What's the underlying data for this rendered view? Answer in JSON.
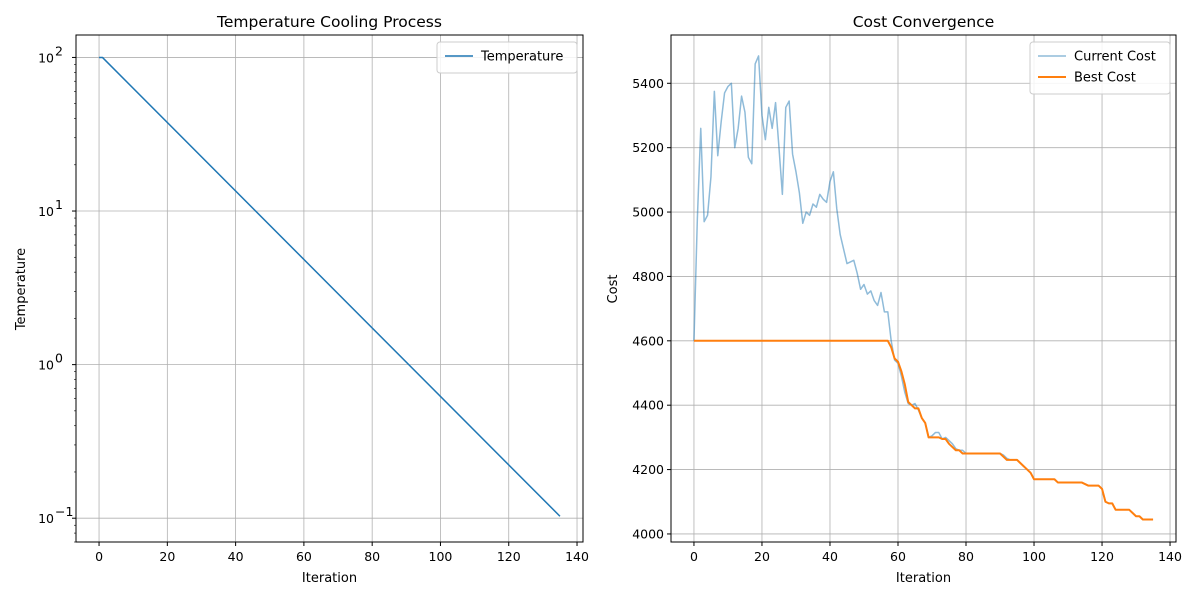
{
  "chart_data": [
    {
      "type": "line",
      "title": "Temperature Cooling Process",
      "xlabel": "Iteration",
      "ylabel": "Temperature",
      "yscale": "log",
      "xlim": [
        -6.75,
        141.75
      ],
      "ylim": [
        0.07,
        140
      ],
      "xticks": [
        0,
        20,
        40,
        60,
        80,
        100,
        120,
        140
      ],
      "xtick_labels": [
        "0",
        "20",
        "40",
        "60",
        "80",
        "100",
        "120",
        "140"
      ],
      "yticks": [
        0.1,
        1,
        10,
        100
      ],
      "ytick_labels": [
        "10",
        "10",
        "10",
        "10"
      ],
      "ytick_exponents": [
        "−1",
        "0",
        "1",
        "2"
      ],
      "grid": true,
      "legend": "upper right",
      "series": [
        {
          "name": "Temperature",
          "color": "#1f77b4",
          "x": [
            0,
            1,
            135
          ],
          "y": [
            100,
            100,
            0.103
          ]
        }
      ]
    },
    {
      "type": "line",
      "title": "Cost Convergence",
      "xlabel": "Iteration",
      "ylabel": "Cost",
      "xlim": [
        -6.75,
        141.75
      ],
      "ylim": [
        3975,
        5550
      ],
      "xticks": [
        0,
        20,
        40,
        60,
        80,
        100,
        120,
        140
      ],
      "xtick_labels": [
        "0",
        "20",
        "40",
        "60",
        "80",
        "100",
        "120",
        "140"
      ],
      "yticks": [
        4000,
        4200,
        4400,
        4600,
        4800,
        5000,
        5200,
        5400
      ],
      "ytick_labels": [
        "4000",
        "4200",
        "4400",
        "4600",
        "4800",
        "5000",
        "5200",
        "5400"
      ],
      "grid": true,
      "legend": "upper right",
      "series": [
        {
          "name": "Current Cost",
          "color": "#1f77b4",
          "alpha": 0.5,
          "x": [
            0,
            1,
            2,
            3,
            4,
            5,
            6,
            7,
            8,
            9,
            10,
            11,
            12,
            13,
            14,
            15,
            16,
            17,
            18,
            19,
            20,
            21,
            22,
            23,
            24,
            25,
            26,
            27,
            28,
            29,
            30,
            31,
            32,
            33,
            34,
            35,
            36,
            37,
            38,
            39,
            40,
            41,
            42,
            43,
            44,
            45,
            46,
            47,
            48,
            49,
            50,
            51,
            52,
            53,
            54,
            55,
            56,
            57,
            58,
            59,
            60,
            61,
            62,
            63,
            64,
            65,
            66,
            67,
            68,
            69,
            70,
            71,
            72,
            73,
            74,
            75,
            76,
            77,
            78,
            79,
            80,
            81,
            82,
            83,
            84,
            85,
            86,
            87,
            88,
            89,
            90,
            91,
            92,
            93,
            94,
            95,
            96,
            97,
            98,
            99,
            100,
            101,
            102,
            103,
            104,
            105,
            106,
            107,
            108,
            109,
            110,
            111,
            112,
            113,
            114,
            115,
            116,
            117,
            118,
            119,
            120,
            121,
            122,
            123,
            124,
            125,
            126,
            127,
            128,
            129,
            130,
            131,
            132,
            133,
            134,
            135
          ],
          "y": [
            4600,
            4980,
            5260,
            4970,
            4990,
            5110,
            5375,
            5175,
            5280,
            5370,
            5390,
            5400,
            5200,
            5260,
            5360,
            5310,
            5170,
            5150,
            5460,
            5485,
            5300,
            5225,
            5325,
            5260,
            5340,
            5200,
            5055,
            5325,
            5345,
            5180,
            5125,
            5060,
            4965,
            5000,
            4990,
            5025,
            5015,
            5055,
            5040,
            5030,
            5095,
            5125,
            5010,
            4930,
            4885,
            4840,
            4845,
            4850,
            4810,
            4760,
            4775,
            4745,
            4755,
            4725,
            4710,
            4750,
            4690,
            4690,
            4600,
            4540,
            4530,
            4490,
            4440,
            4405,
            4400,
            4405,
            4385,
            4360,
            4345,
            4300,
            4305,
            4315,
            4315,
            4295,
            4300,
            4290,
            4280,
            4265,
            4260,
            4260,
            4250,
            4250,
            4250,
            4250,
            4250,
            4250,
            4250,
            4250,
            4250,
            4250,
            4250,
            4245,
            4235,
            4230,
            4230,
            4230,
            4220,
            4210,
            4200,
            4190,
            4170,
            4170,
            4170,
            4170,
            4170,
            4170,
            4170,
            4160,
            4160,
            4160,
            4160,
            4160,
            4160,
            4160,
            4160,
            4155,
            4150,
            4150,
            4150,
            4150,
            4140,
            4100,
            4095,
            4095,
            4075,
            4075,
            4075,
            4075,
            4075,
            4065,
            4055,
            4055,
            4045,
            4045,
            4045,
            4045
          ],
          "line_width": 1.5
        },
        {
          "name": "Best Cost",
          "color": "#ff7f0e",
          "x": [
            0,
            1,
            2,
            3,
            4,
            5,
            6,
            7,
            8,
            9,
            10,
            11,
            12,
            13,
            14,
            15,
            16,
            17,
            18,
            19,
            20,
            21,
            22,
            23,
            24,
            25,
            26,
            27,
            28,
            29,
            30,
            31,
            32,
            33,
            34,
            35,
            36,
            37,
            38,
            39,
            40,
            41,
            42,
            43,
            44,
            45,
            46,
            47,
            48,
            49,
            50,
            51,
            52,
            53,
            54,
            55,
            56,
            57,
            58,
            59,
            60,
            61,
            62,
            63,
            64,
            65,
            66,
            67,
            68,
            69,
            70,
            71,
            72,
            73,
            74,
            75,
            76,
            77,
            78,
            79,
            80,
            81,
            82,
            83,
            84,
            85,
            86,
            87,
            88,
            89,
            90,
            91,
            92,
            93,
            94,
            95,
            96,
            97,
            98,
            99,
            100,
            101,
            102,
            103,
            104,
            105,
            106,
            107,
            108,
            109,
            110,
            111,
            112,
            113,
            114,
            115,
            116,
            117,
            118,
            119,
            120,
            121,
            122,
            123,
            124,
            125,
            126,
            127,
            128,
            129,
            130,
            131,
            132,
            133,
            134,
            135
          ],
          "y": [
            4600,
            4600,
            4600,
            4600,
            4600,
            4600,
            4600,
            4600,
            4600,
            4600,
            4600,
            4600,
            4600,
            4600,
            4600,
            4600,
            4600,
            4600,
            4600,
            4600,
            4600,
            4600,
            4600,
            4600,
            4600,
            4600,
            4600,
            4600,
            4600,
            4600,
            4600,
            4600,
            4600,
            4600,
            4600,
            4600,
            4600,
            4600,
            4600,
            4600,
            4600,
            4600,
            4600,
            4600,
            4600,
            4600,
            4600,
            4600,
            4600,
            4600,
            4600,
            4600,
            4600,
            4600,
            4600,
            4600,
            4600,
            4600,
            4580,
            4545,
            4535,
            4505,
            4465,
            4410,
            4400,
            4390,
            4390,
            4360,
            4345,
            4300,
            4300,
            4300,
            4300,
            4295,
            4295,
            4280,
            4270,
            4260,
            4260,
            4250,
            4250,
            4250,
            4250,
            4250,
            4250,
            4250,
            4250,
            4250,
            4250,
            4250,
            4250,
            4240,
            4230,
            4230,
            4230,
            4230,
            4220,
            4210,
            4200,
            4190,
            4170,
            4170,
            4170,
            4170,
            4170,
            4170,
            4170,
            4160,
            4160,
            4160,
            4160,
            4160,
            4160,
            4160,
            4160,
            4155,
            4150,
            4150,
            4150,
            4150,
            4140,
            4100,
            4095,
            4095,
            4075,
            4075,
            4075,
            4075,
            4075,
            4065,
            4055,
            4055,
            4045,
            4045,
            4045,
            4045
          ],
          "line_width": 2
        }
      ]
    }
  ]
}
